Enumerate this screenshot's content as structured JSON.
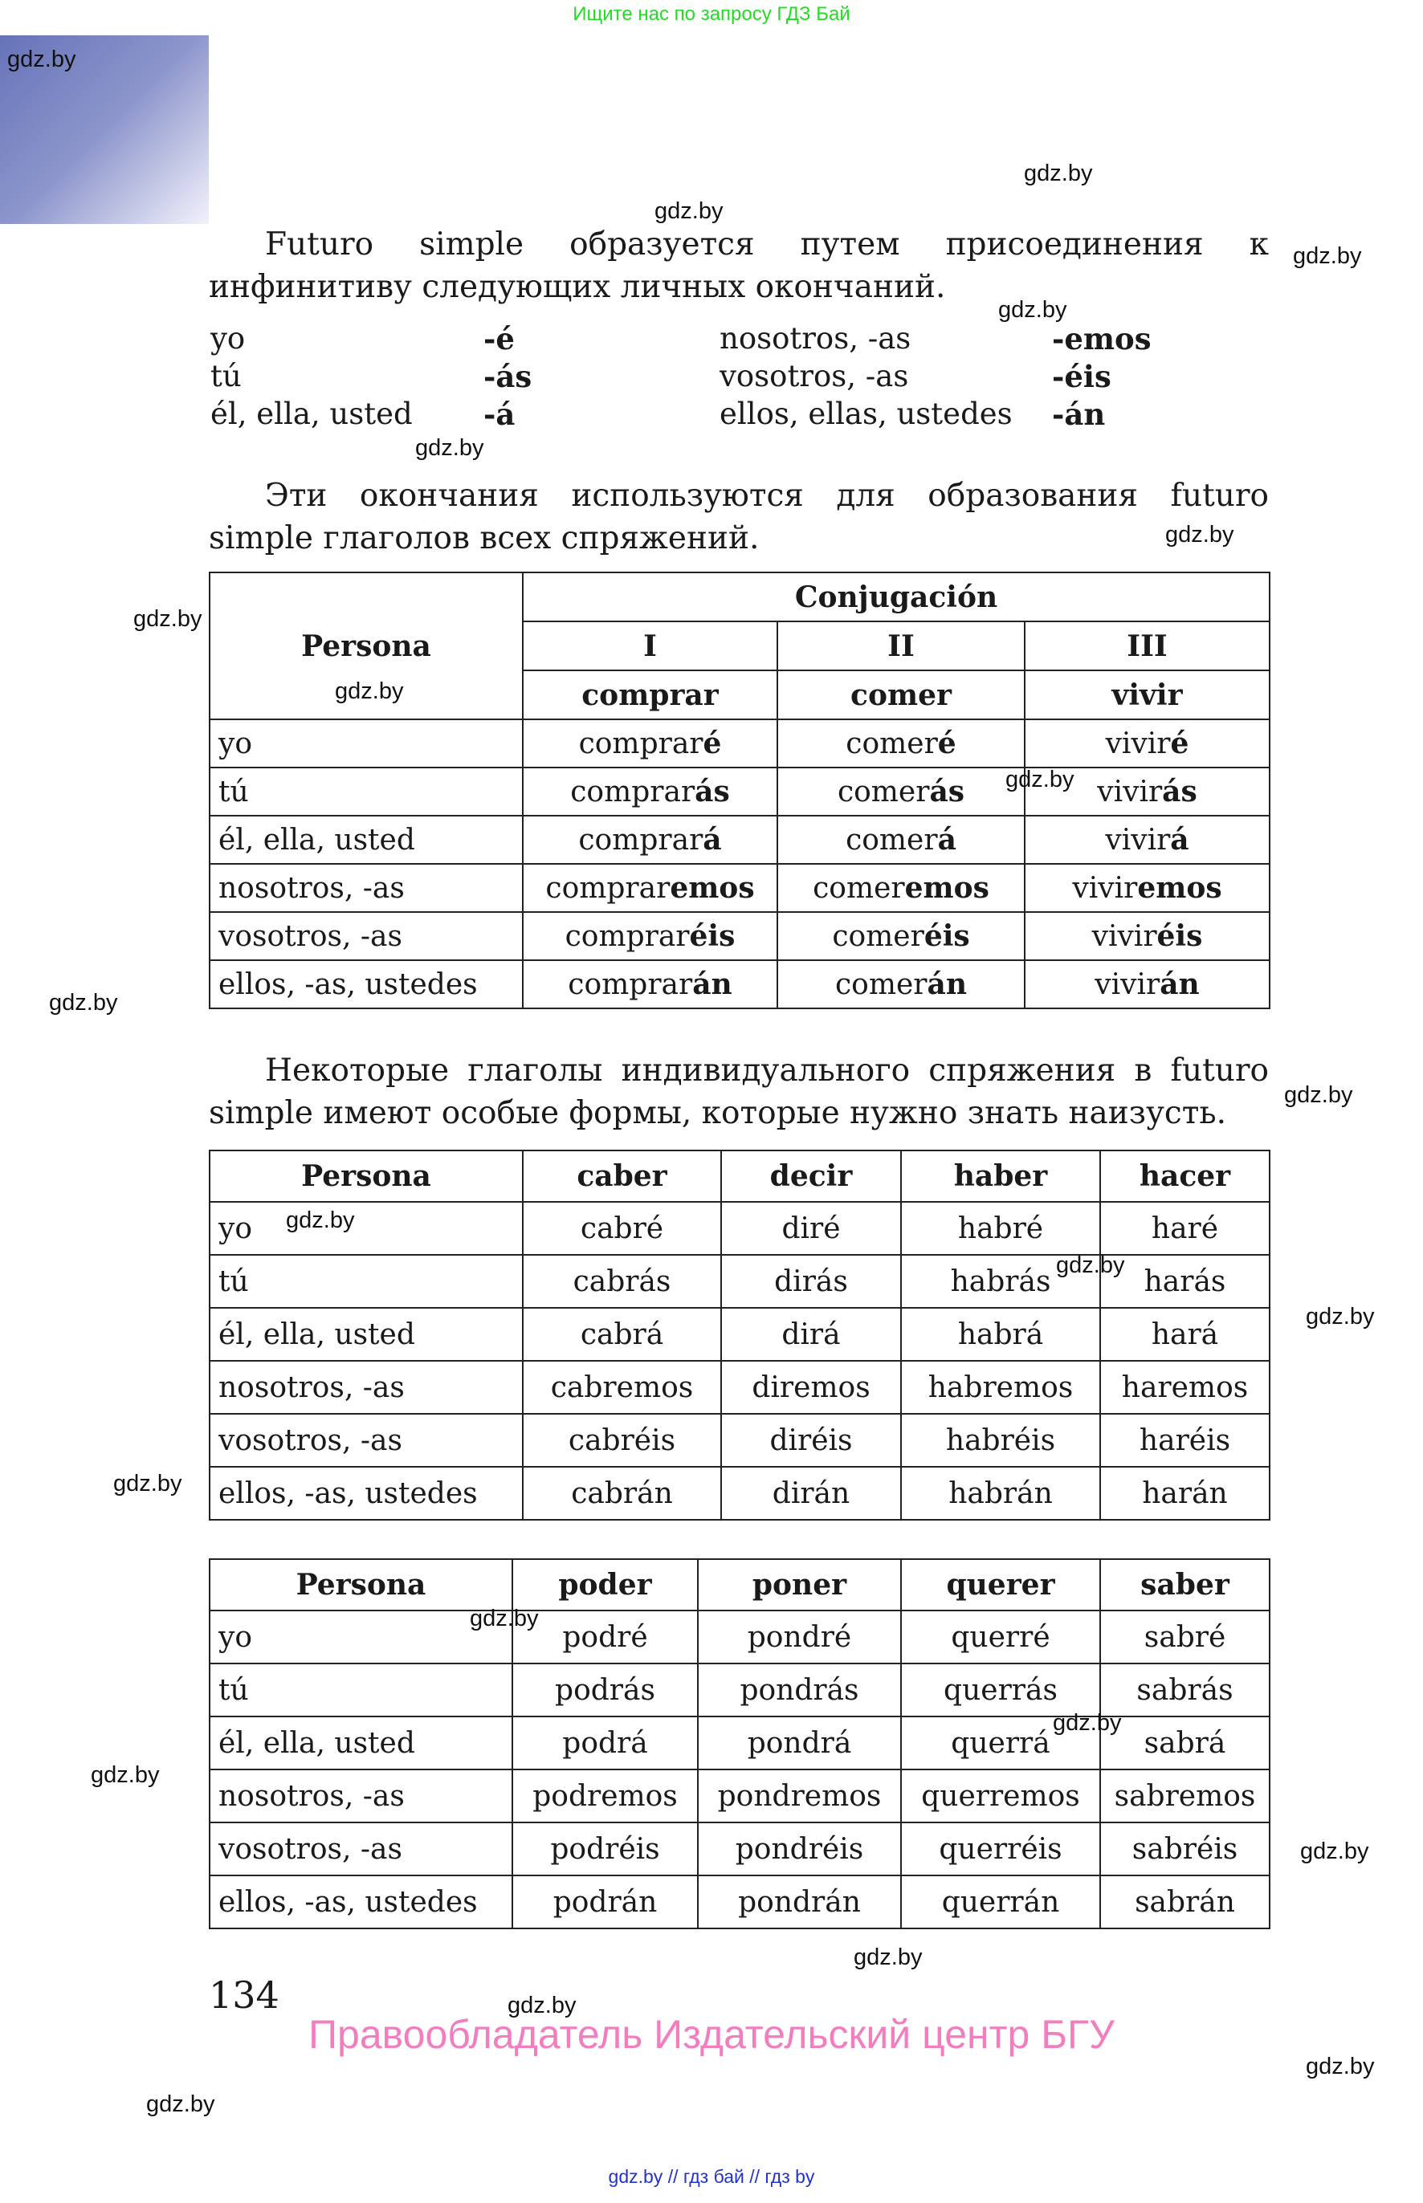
{
  "top_note": "Ищите нас по запросу ГДЗ Бай",
  "watermark": "gdz.by",
  "paragraph1": "Futuro simple образуется путем присоединения к инфинитиву следующих личных окончаний.",
  "endings": [
    {
      "person": "yo",
      "ending": "-é",
      "person2": "nosotros, -as",
      "ending2": "-emos"
    },
    {
      "person": "tú",
      "ending": "-ás",
      "person2": "vosotros, -as",
      "ending2": "-éis"
    },
    {
      "person": "él, ella, usted",
      "ending": "-á",
      "person2": "ellos, ellas, ustedes",
      "ending2": "-án"
    }
  ],
  "paragraph2": "Эти окончания используются для образования futuro simple глаголов всех спряжений.",
  "table1": {
    "persona_header": "Persona",
    "conjugacion_header": "Conjugación",
    "groups": [
      "I",
      "II",
      "III"
    ],
    "verbs": [
      "comprar",
      "comer",
      "vivir"
    ],
    "rows": [
      {
        "persona": "yo",
        "cells": [
          [
            "compraré",
            "é"
          ],
          [
            "comeré",
            "é"
          ],
          [
            "viviré",
            "é"
          ]
        ]
      },
      {
        "persona": "tú",
        "cells": [
          [
            "comprarás",
            "ás"
          ],
          [
            "comerás",
            "ás"
          ],
          [
            "vivirás",
            "ás"
          ]
        ]
      },
      {
        "persona": "él, ella, usted",
        "cells": [
          [
            "comprará",
            "á"
          ],
          [
            "comerá",
            "á"
          ],
          [
            "vivirá",
            "á"
          ]
        ]
      },
      {
        "persona": "nosotros, -as",
        "cells": [
          [
            "compraremos",
            "emos"
          ],
          [
            "comeremos",
            "emos"
          ],
          [
            "viviremos",
            "emos"
          ]
        ]
      },
      {
        "persona": "vosotros, -as",
        "cells": [
          [
            "compraréis",
            "éis"
          ],
          [
            "comeréis",
            "éis"
          ],
          [
            "viviréis",
            "éis"
          ]
        ]
      },
      {
        "persona": "ellos, -as, ustedes",
        "cells": [
          [
            "comprarán",
            "án"
          ],
          [
            "comerán",
            "án"
          ],
          [
            "vivirán",
            "án"
          ]
        ]
      }
    ]
  },
  "paragraph3": "Некоторые глаголы индивидуального спряжения в futuro simple имеют особые формы, которые нужно знать наизусть.",
  "table2": {
    "headers": [
      "Persona",
      "caber",
      "decir",
      "haber",
      "hacer"
    ],
    "rows": [
      [
        "yo",
        "cabré",
        "diré",
        "habré",
        "haré"
      ],
      [
        "tú",
        "cabrás",
        "dirás",
        "habrás",
        "harás"
      ],
      [
        "él, ella, usted",
        "cabrá",
        "dirá",
        "habrá",
        "hará"
      ],
      [
        "nosotros, -as",
        "cabremos",
        "diremos",
        "habremos",
        "haremos"
      ],
      [
        "vosotros, -as",
        "cabréis",
        "diréis",
        "habréis",
        "haréis"
      ],
      [
        "ellos, -as, ustedes",
        "cabrán",
        "dirán",
        "habrán",
        "harán"
      ]
    ]
  },
  "table3": {
    "headers": [
      "Persona",
      "poder",
      "poner",
      "querer",
      "saber"
    ],
    "rows": [
      [
        "yo",
        "podré",
        "pondré",
        "querré",
        "sabré"
      ],
      [
        "tú",
        "podrás",
        "pondrás",
        "querrás",
        "sabrás"
      ],
      [
        "él, ella, usted",
        "podrá",
        "pondrá",
        "querrá",
        "sabrá"
      ],
      [
        "nosotros, -as",
        "podremos",
        "pondremos",
        "querremos",
        "sabremos"
      ],
      [
        "vosotros, -as",
        "podréis",
        "pondréis",
        "querréis",
        "sabréis"
      ],
      [
        "ellos, -as, ustedes",
        "podrán",
        "pondrán",
        "querrán",
        "sabrán"
      ]
    ]
  },
  "page_number": "134",
  "rights_holder": "Правообладатель Издательский центр БГУ",
  "footer": "gdz.by  //  гдз бай  //  гдз by"
}
